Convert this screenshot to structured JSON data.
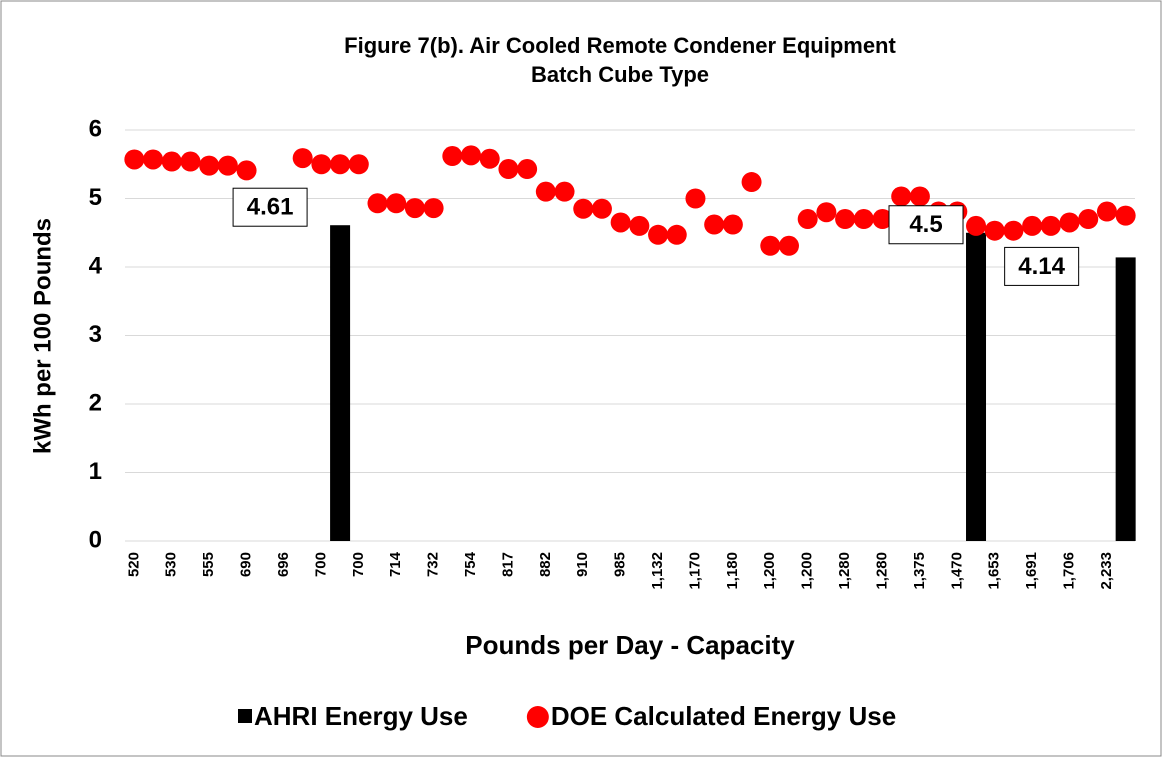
{
  "chart_data": {
    "type": "combo",
    "title": [
      "Figure 7(b). Air Cooled Remote Condener Equipment",
      "Batch Cube Type"
    ],
    "x_label": "Pounds per Day - Capacity",
    "y_label": "kWh per 100 Pounds",
    "categories": [
      "520",
      null,
      "530",
      null,
      "555",
      null,
      "690",
      null,
      "696",
      null,
      "700",
      null,
      "700",
      null,
      "714",
      null,
      "732",
      null,
      "754",
      null,
      "817",
      null,
      "882",
      null,
      "910",
      null,
      "985",
      null,
      "1,132",
      null,
      "1,170",
      null,
      "1,180",
      null,
      "1,200",
      null,
      "1,200",
      null,
      "1,280",
      null,
      "1,280",
      null,
      "1,375",
      null,
      "1,470",
      null,
      "1,653",
      null,
      "1,691",
      null,
      "1,706",
      null,
      "2,233",
      null
    ],
    "series": [
      {
        "name": "AHRI Energy Use",
        "kind": "bar",
        "color": "#000000",
        "values": [
          null,
          null,
          null,
          null,
          null,
          null,
          null,
          null,
          null,
          null,
          null,
          4.61,
          null,
          null,
          null,
          null,
          null,
          null,
          null,
          null,
          null,
          null,
          null,
          null,
          null,
          null,
          null,
          null,
          null,
          null,
          null,
          null,
          null,
          null,
          null,
          null,
          null,
          null,
          null,
          null,
          null,
          null,
          null,
          null,
          null,
          4.5,
          null,
          null,
          null,
          null,
          null,
          null,
          null,
          4.14
        ]
      },
      {
        "name": "DOE Calculated Energy Use",
        "kind": "dot",
        "color": "#ff0000",
        "values": [
          5.57,
          5.57,
          5.54,
          5.54,
          5.48,
          5.48,
          5.41,
          4.93,
          4.93,
          5.59,
          5.5,
          5.5,
          5.5,
          4.93,
          4.93,
          4.86,
          4.86,
          5.62,
          5.63,
          5.58,
          5.43,
          5.43,
          5.1,
          5.1,
          4.85,
          4.85,
          4.65,
          4.6,
          4.47,
          4.47,
          5.0,
          4.62,
          4.62,
          5.24,
          4.31,
          4.31,
          4.7,
          4.8,
          4.7,
          4.7,
          4.7,
          5.03,
          5.03,
          4.81,
          4.81,
          4.6,
          4.53,
          4.53,
          4.6,
          4.6,
          4.65,
          4.7,
          4.81,
          4.75
        ]
      }
    ],
    "ylim": [
      0,
      6
    ],
    "yticks": [
      0,
      1,
      2,
      3,
      4,
      5,
      6
    ],
    "grid": true
  }
}
